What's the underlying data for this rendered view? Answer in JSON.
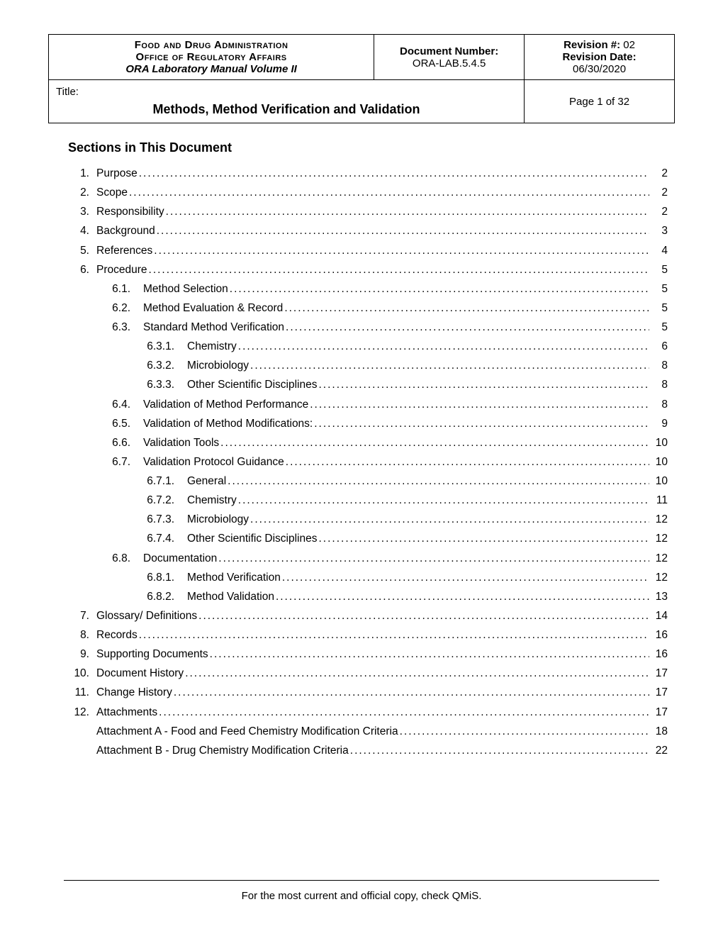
{
  "header": {
    "org_line1": "Food and Drug Administration",
    "org_line2": "Office of Regulatory Affairs",
    "org_line3": "ORA Laboratory Manual Volume II",
    "doc_num_label": "Document Number:",
    "doc_num_value": "ORA-LAB.5.4.5",
    "rev_num_label": "Revision #:",
    "rev_num_value": "02",
    "rev_date_label": "Revision Date:",
    "rev_date_value": "06/30/2020",
    "title_label": "Title:",
    "doc_title": "Methods, Method Verification and Validation",
    "page_text": "Page 1 of 32"
  },
  "sections_heading": "Sections in This Document",
  "toc": [
    {
      "level": 1,
      "num": "1.",
      "label": "Purpose",
      "page": "2"
    },
    {
      "level": 1,
      "num": "2.",
      "label": "Scope",
      "page": "2"
    },
    {
      "level": 1,
      "num": "3.",
      "label": "Responsibility",
      "page": "2"
    },
    {
      "level": 1,
      "num": "4.",
      "label": "Background",
      "page": "3"
    },
    {
      "level": 1,
      "num": "5.",
      "label": "References",
      "page": "4"
    },
    {
      "level": 1,
      "num": "6.",
      "label": "Procedure",
      "page": "5"
    },
    {
      "level": 2,
      "num": "6.1.",
      "label": "Method Selection",
      "page": "5"
    },
    {
      "level": 2,
      "num": "6.2.",
      "label": "Method Evaluation & Record",
      "page": "5"
    },
    {
      "level": 2,
      "num": "6.3.",
      "label": "Standard Method Verification",
      "page": "5"
    },
    {
      "level": 3,
      "num": "6.3.1.",
      "label": "Chemistry",
      "page": "6"
    },
    {
      "level": 3,
      "num": "6.3.2.",
      "label": "Microbiology",
      "page": "8"
    },
    {
      "level": 3,
      "num": "6.3.3.",
      "label": "Other Scientific Disciplines",
      "page": "8"
    },
    {
      "level": 2,
      "num": "6.4.",
      "label": "Validation of Method Performance",
      "page": "8"
    },
    {
      "level": 2,
      "num": "6.5.",
      "label": "Validation of Method Modifications:",
      "page": "9"
    },
    {
      "level": 2,
      "num": "6.6.",
      "label": "Validation Tools",
      "page": "10"
    },
    {
      "level": 2,
      "num": "6.7.",
      "label": "Validation Protocol Guidance",
      "page": "10"
    },
    {
      "level": 3,
      "num": "6.7.1.",
      "label": "General",
      "page": "10"
    },
    {
      "level": 3,
      "num": "6.7.2.",
      "label": "Chemistry",
      "page": "11"
    },
    {
      "level": 3,
      "num": "6.7.3.",
      "label": "Microbiology",
      "page": "12"
    },
    {
      "level": 3,
      "num": "6.7.4.",
      "label": "Other Scientific Disciplines",
      "page": "12"
    },
    {
      "level": 2,
      "num": "6.8.",
      "label": "Documentation",
      "page": "12"
    },
    {
      "level": 3,
      "num": "6.8.1.",
      "label": "Method Verification",
      "page": "12"
    },
    {
      "level": 3,
      "num": "6.8.2.",
      "label": "Method Validation",
      "page": "13"
    },
    {
      "level": 1,
      "num": "7.",
      "label": "Glossary/ Definitions",
      "page": "14"
    },
    {
      "level": 1,
      "num": "8.",
      "label": "Records",
      "page": "16"
    },
    {
      "level": 1,
      "num": "9.",
      "label": "Supporting Documents",
      "page": "16"
    },
    {
      "level": 1,
      "num": "10.",
      "label": "Document History",
      "page": "17"
    },
    {
      "level": 1,
      "num": "11.",
      "label": "Change History",
      "page": "17"
    },
    {
      "level": 1,
      "num": "12.",
      "label": "Attachments",
      "page": "17"
    },
    {
      "level": "att",
      "num": "",
      "label": "Attachment A - Food and Feed Chemistry Modification Criteria",
      "page": "18"
    },
    {
      "level": "att",
      "num": "",
      "label": "Attachment B - Drug Chemistry Modification Criteria",
      "page": "22"
    }
  ],
  "footer": "For the most current and official copy, check QMiS."
}
